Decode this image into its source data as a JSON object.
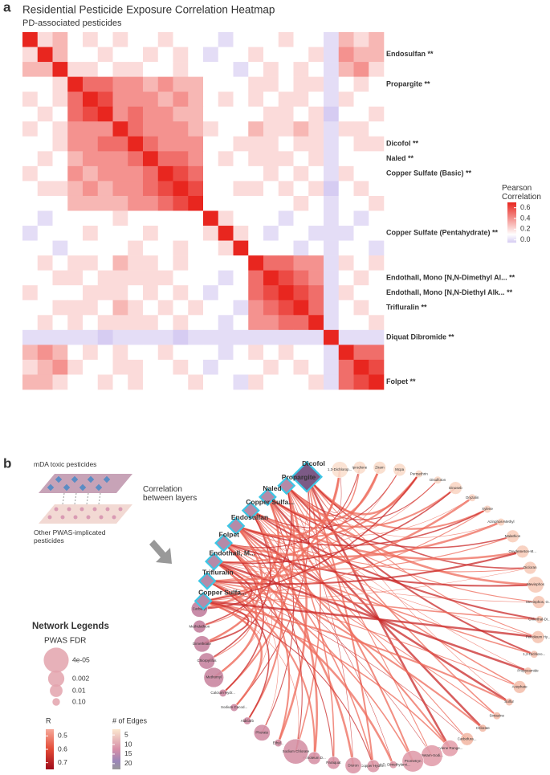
{
  "panel_a": {
    "label": "a",
    "chart_data": {
      "type": "heatmap",
      "title": "Residential Pesticide Exposure Correlation Heatmap",
      "subtitle": "PD-associated pesticides",
      "row_labels": [
        null,
        "Endosulfan **",
        null,
        "Propargite **",
        null,
        null,
        null,
        "Dicofol **",
        "Naled **",
        "Copper Sulfate (Basic) **",
        null,
        null,
        null,
        "Copper Sulfate (Pentahydrate) **",
        null,
        null,
        "Endothall, Mono [N,N-Dimethyl Al... **",
        "Endothall, Mono [N,N-Diethyl Alk... **",
        "Trifluralin **",
        null,
        "Diquat Dibromide **",
        null,
        null,
        "Folpet **"
      ],
      "values": [
        [
          1,
          0.2,
          0.3,
          0.1,
          0.2,
          0.1,
          0.2,
          0.1,
          0.1,
          0.2,
          0.1,
          0.1,
          0.1,
          0,
          0.1,
          0.1,
          0.1,
          0.2,
          0.1,
          0.1,
          0,
          0.3,
          0.2,
          0.3
        ],
        [
          0.2,
          1,
          0.3,
          0.1,
          0.1,
          0.2,
          0.1,
          0.1,
          0.2,
          0.1,
          0.2,
          0.1,
          0,
          0.1,
          0.1,
          0.2,
          0.1,
          0.1,
          0.1,
          0.2,
          0,
          0.4,
          0.3,
          0.3
        ],
        [
          0.3,
          0.3,
          1,
          0.2,
          0.2,
          0.1,
          0.2,
          0.2,
          0.1,
          0.1,
          0.2,
          0.1,
          0.1,
          0.1,
          0,
          0.1,
          0.2,
          0.1,
          0.2,
          0.1,
          0,
          0.3,
          0.4,
          0.2
        ],
        [
          0.1,
          0.1,
          0.2,
          1,
          0.5,
          0.5,
          0.4,
          0.4,
          0.3,
          0.4,
          0.3,
          0.3,
          0.1,
          0.1,
          0.1,
          0.2,
          0.2,
          0.1,
          0.2,
          0.2,
          0,
          0.1,
          0.2,
          0.1
        ],
        [
          0.2,
          0.1,
          0.2,
          0.5,
          1,
          0.6,
          0.4,
          0.4,
          0.4,
          0.3,
          0.4,
          0.3,
          0.1,
          0.2,
          0.1,
          0.2,
          0.1,
          0.2,
          0.2,
          0.1,
          0,
          0.2,
          0.1,
          0.1
        ],
        [
          0.1,
          0.2,
          0.1,
          0.5,
          0.6,
          1,
          0.4,
          0.5,
          0.4,
          0.4,
          0.3,
          0.3,
          0.1,
          0.1,
          0.1,
          0.1,
          0.2,
          0.2,
          0.1,
          0.2,
          -0.1,
          0.1,
          0.1,
          0.2
        ],
        [
          0.2,
          0.1,
          0.2,
          0.4,
          0.4,
          0.4,
          1,
          0.5,
          0.4,
          0.4,
          0.4,
          0.3,
          0.2,
          0.1,
          0.1,
          0.3,
          0.2,
          0.2,
          0.3,
          0.2,
          0,
          0.2,
          0.2,
          0.1
        ],
        [
          0.1,
          0.1,
          0.2,
          0.4,
          0.4,
          0.5,
          0.5,
          1,
          0.5,
          0.4,
          0.4,
          0.4,
          0.1,
          0.1,
          0.2,
          0.2,
          0.2,
          0.1,
          0.2,
          0.2,
          0,
          0.1,
          0.2,
          0.2
        ],
        [
          0.1,
          0.2,
          0.1,
          0.3,
          0.4,
          0.4,
          0.4,
          0.5,
          1,
          0.5,
          0.5,
          0.4,
          0.1,
          0.2,
          0.1,
          0.2,
          0.2,
          0.2,
          0.1,
          0.2,
          0,
          0.1,
          0.1,
          0.1
        ],
        [
          0.2,
          0.1,
          0.1,
          0.4,
          0.3,
          0.4,
          0.4,
          0.4,
          0.5,
          1,
          0.6,
          0.5,
          0.1,
          0.1,
          0.1,
          0.1,
          0.2,
          0.1,
          0.2,
          0.1,
          0,
          0.2,
          0.1,
          0.1
        ],
        [
          0.1,
          0.2,
          0.2,
          0.3,
          0.4,
          0.3,
          0.4,
          0.4,
          0.5,
          0.6,
          1,
          0.6,
          0.1,
          0.1,
          0.2,
          0.2,
          0.1,
          0.2,
          0.1,
          0.2,
          -0.1,
          0.1,
          0.2,
          0.1
        ],
        [
          0.1,
          0.1,
          0.1,
          0.3,
          0.3,
          0.3,
          0.3,
          0.4,
          0.4,
          0.5,
          0.6,
          1,
          0.1,
          0.1,
          0.1,
          0.1,
          0.1,
          0.1,
          0.2,
          0.1,
          0,
          0.1,
          0.1,
          0.2
        ],
        [
          0.1,
          0,
          0.1,
          0.1,
          0.1,
          0.1,
          0.2,
          0.1,
          0.1,
          0.1,
          0.1,
          0.1,
          1,
          0.2,
          0.1,
          0.1,
          0.1,
          0,
          0.1,
          0.1,
          0,
          0.1,
          0,
          0.1
        ],
        [
          0,
          0.1,
          0.1,
          0.1,
          0.2,
          0.1,
          0.1,
          0.1,
          0.2,
          0.1,
          0.1,
          0.1,
          0.2,
          1,
          0.2,
          0.1,
          0,
          0.1,
          0.1,
          0,
          0,
          0,
          0.1,
          0.1
        ],
        [
          0.1,
          0.1,
          0,
          0.1,
          0.1,
          0.1,
          0.1,
          0.2,
          0.1,
          0.1,
          0.2,
          0.1,
          0.1,
          0.2,
          1,
          0.1,
          0.1,
          0.1,
          0,
          0.1,
          0,
          0.1,
          0.1,
          0
        ],
        [
          0.1,
          0.2,
          0.1,
          0.2,
          0.2,
          0.1,
          0.3,
          0.2,
          0.2,
          0.1,
          0.2,
          0.1,
          0.1,
          0.1,
          0.1,
          1,
          0.5,
          0.5,
          0.4,
          0.4,
          0,
          0.2,
          0.1,
          0.2
        ],
        [
          0.1,
          0.1,
          0.2,
          0.2,
          0.1,
          0.2,
          0.2,
          0.2,
          0.2,
          0.2,
          0.1,
          0.1,
          0.1,
          0,
          0.1,
          0.5,
          1,
          0.6,
          0.5,
          0.4,
          0,
          0.1,
          0.2,
          0.1
        ],
        [
          0.2,
          0.1,
          0.1,
          0.1,
          0.2,
          0.2,
          0.2,
          0.1,
          0.2,
          0.1,
          0.2,
          0.1,
          0,
          0.1,
          0.1,
          0.5,
          0.6,
          1,
          0.6,
          0.5,
          0,
          0.2,
          0.1,
          0.1
        ],
        [
          0.1,
          0.1,
          0.2,
          0.2,
          0.2,
          0.1,
          0.3,
          0.2,
          0.1,
          0.2,
          0.1,
          0.2,
          0.1,
          0.1,
          0,
          0.4,
          0.5,
          0.6,
          1,
          0.5,
          0,
          0.1,
          0.2,
          0.1
        ],
        [
          0.1,
          0.2,
          0.1,
          0.2,
          0.1,
          0.2,
          0.2,
          0.2,
          0.2,
          0.1,
          0.2,
          0.1,
          0.1,
          0,
          0.1,
          0.4,
          0.4,
          0.5,
          0.5,
          1,
          0,
          0.1,
          0.1,
          0.2
        ],
        [
          0,
          0,
          0,
          0,
          0,
          -0.1,
          0,
          0,
          0,
          0,
          -0.1,
          0,
          0,
          0,
          0,
          0,
          0,
          0,
          0,
          0,
          1,
          0,
          0,
          0
        ],
        [
          0.3,
          0.4,
          0.3,
          0.1,
          0.2,
          0.1,
          0.2,
          0.1,
          0.1,
          0.2,
          0.1,
          0.1,
          0.1,
          0,
          0.1,
          0.2,
          0.1,
          0.2,
          0.1,
          0.1,
          0,
          1,
          0.5,
          0.5
        ],
        [
          0.2,
          0.3,
          0.4,
          0.2,
          0.1,
          0.1,
          0.2,
          0.2,
          0.1,
          0.1,
          0.2,
          0.1,
          0,
          0.1,
          0.1,
          0.1,
          0.2,
          0.1,
          0.2,
          0.1,
          0,
          0.5,
          1,
          0.6
        ],
        [
          0.3,
          0.3,
          0.2,
          0.1,
          0.1,
          0.2,
          0.1,
          0.2,
          0.1,
          0.1,
          0.1,
          0.2,
          0.1,
          0.1,
          0,
          0.2,
          0.1,
          0.1,
          0.1,
          0.2,
          0,
          0.5,
          0.6,
          1
        ]
      ],
      "clim": [
        -0.05,
        0.7
      ],
      "colorscale": [
        [
          -0.05,
          "#d6ccf2"
        ],
        [
          0.1,
          "#ffffff"
        ],
        [
          0.7,
          "#e8261f"
        ]
      ],
      "legend": {
        "title": "Pearson Correlation",
        "ticks": [
          {
            "value": 0,
            "label": "0.0"
          },
          0.2,
          0.4,
          0.6
        ]
      }
    }
  },
  "panel_b": {
    "label": "b",
    "schematic": {
      "top": "mDA toxic pesticides",
      "middle": "Correlation between layers",
      "bottom": "Other PWAS-implicated pesticides"
    },
    "network": {
      "toxic_nodes": [
        "Dicofol",
        "Propargite",
        "Naled",
        "Copper Sulfa...",
        "Endosulfan",
        "Folpet",
        "Endothall, M...",
        "Trifluralin",
        "Copper Sulfa..."
      ],
      "nodes": [
        {
          "label": "1,3-Dichlorop...",
          "fdr": 0.002
        },
        {
          "label": "Iprodione",
          "fdr": 0.01
        },
        {
          "label": "Ziram",
          "fdr": 0.01
        },
        {
          "label": "Mcpa",
          "fdr": 0.01
        },
        {
          "label": "Permethrin",
          "fdr": 0.1
        },
        {
          "label": "Disulfoton",
          "fdr": 0.1
        },
        {
          "label": "Dinoseb",
          "fdr": 0.01
        },
        {
          "label": "Oryzalin",
          "fdr": 0.1
        },
        {
          "label": "Xylene",
          "fdr": 0.1
        },
        {
          "label": "Azinphos-Methyl",
          "fdr": 0.1
        },
        {
          "label": "Malathion",
          "fdr": 0.01
        },
        {
          "label": "Oxydemeton-M...",
          "fdr": 0.01
        },
        {
          "label": "Dicloran",
          "fdr": 0.01
        },
        {
          "label": "Mevinphos",
          "fdr": 0.002
        },
        {
          "label": "Mevinphos, O...",
          "fdr": 0.01
        },
        {
          "label": "Chlorthal-Di...",
          "fdr": 0.1
        },
        {
          "label": "Petroleum Hy...",
          "fdr": 0.01
        },
        {
          "label": "1,2-Dichloro...",
          "fdr": 0.1
        },
        {
          "label": "Propyzamide",
          "fdr": 0.1
        },
        {
          "label": "Acephate",
          "fdr": 0.01
        },
        {
          "label": "Sulfur",
          "fdr": 0.1
        },
        {
          "label": "Simazine",
          "fdr": 0.1
        },
        {
          "label": "Chlorate",
          "fdr": 0.1
        },
        {
          "label": "Carbofura...",
          "fdr": 0.01
        },
        {
          "label": "Xylene Range...",
          "fdr": 0.002
        },
        {
          "label": "Metam-Sodi...",
          "fdr": 0.0002
        },
        {
          "label": "Prometryn",
          "fdr": 0.0002
        },
        {
          "label": "2,4-D, Dimethylami...",
          "fdr": 0.1
        },
        {
          "label": "Copper Hydro...",
          "fdr": 0.01
        },
        {
          "label": "Diuron",
          "fdr": 0.002
        },
        {
          "label": "Paraquat",
          "fdr": 0.01
        },
        {
          "label": "Petroleum D...",
          "fdr": 0.01
        },
        {
          "label": "Sodium Chlorate",
          "fdr": 4e-05
        },
        {
          "label": "Ethyl...",
          "fdr": 0.1
        },
        {
          "label": "Phorate",
          "fdr": 0.002
        },
        {
          "label": "Aldicarb",
          "fdr": 0.1
        },
        {
          "label": "Sodium Cacod...",
          "fdr": 0.1
        },
        {
          "label": "Calcium Hydr...",
          "fdr": 0.1
        },
        {
          "label": "Methomyl",
          "fdr": 0.0004
        },
        {
          "label": "Chlorpyrifos",
          "fdr": 0.002
        },
        {
          "label": "Dimethoate",
          "fdr": 0.002
        },
        {
          "label": "Methidathion",
          "fdr": 0.01
        },
        {
          "label": "Carbaryl",
          "fdr": 0.002
        }
      ]
    },
    "legends": {
      "title": "Network Legends",
      "fdr": {
        "title": "PWAS FDR",
        "values": [
          {
            "value": 4e-05,
            "label": "4e-05"
          },
          0.002,
          0.01,
          {
            "value": 0.1,
            "label": "0.10"
          }
        ]
      },
      "r": {
        "title": "R",
        "lim": [
          0.45,
          0.75
        ],
        "ticks": [
          0.5,
          0.6,
          0.7
        ]
      },
      "edges": {
        "title": "# of Edges",
        "lim": [
          2,
          23
        ],
        "ticks": [
          5,
          10,
          15,
          20
        ]
      }
    }
  }
}
